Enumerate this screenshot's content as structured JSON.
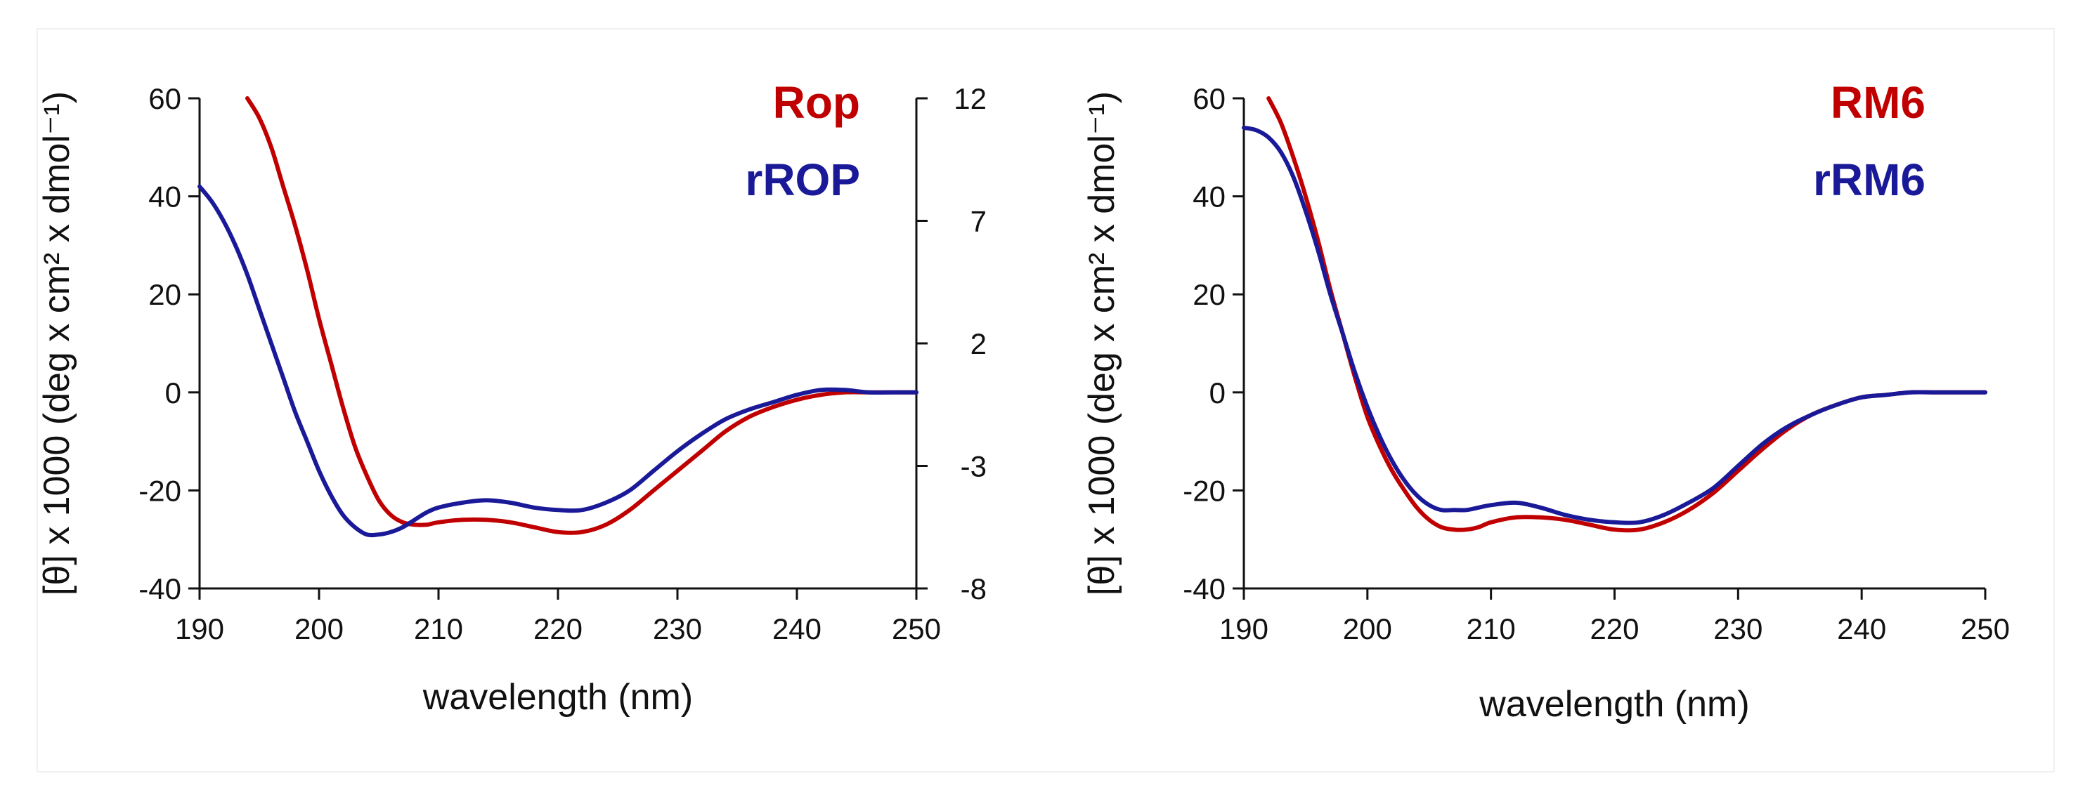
{
  "chart_data": [
    {
      "type": "line",
      "xlabel": "wavelength (nm)",
      "ylabel": "[θ] x 1000 (deg x cm² x dmol⁻¹)",
      "xlim": [
        190,
        250
      ],
      "ylim": [
        -40,
        60
      ],
      "x_ticks": [
        "190",
        "200",
        "210",
        "220",
        "230",
        "240",
        "250"
      ],
      "y_ticks": [
        "-40",
        "-20",
        "0",
        "20",
        "40",
        "60"
      ],
      "y2_ticks": [
        "-8",
        "-3",
        "2",
        "7",
        "12"
      ],
      "y2lim": [
        -8,
        12
      ],
      "grid": false,
      "legend_position": "top-right",
      "series": [
        {
          "name": "Rop",
          "color": "#c00000",
          "x": [
            194,
            195,
            196,
            197,
            198,
            199,
            200,
            201,
            202,
            203,
            204,
            205,
            206,
            207,
            208,
            209,
            210,
            212,
            214,
            216,
            218,
            220,
            222,
            224,
            226,
            228,
            230,
            232,
            234,
            236,
            238,
            240,
            242,
            244,
            246,
            248,
            250
          ],
          "y": [
            60,
            56,
            50,
            42,
            34,
            25,
            15,
            6,
            -3,
            -11,
            -17,
            -22,
            -25,
            -26.5,
            -27,
            -27,
            -26.5,
            -26,
            -26,
            -26.5,
            -27.5,
            -28.5,
            -28.5,
            -27,
            -24,
            -20,
            -16,
            -12,
            -8,
            -5,
            -3,
            -1.5,
            -0.5,
            0,
            0,
            0,
            0
          ]
        },
        {
          "name": "rROP",
          "color": "#1a1a99",
          "x": [
            190,
            191,
            192,
            193,
            194,
            195,
            196,
            197,
            198,
            199,
            200,
            201,
            202,
            203,
            204,
            205,
            206,
            207,
            208,
            209,
            210,
            212,
            214,
            216,
            218,
            220,
            222,
            224,
            226,
            228,
            230,
            232,
            234,
            236,
            238,
            240,
            242,
            244,
            246,
            248,
            250
          ],
          "y": [
            42,
            39,
            35,
            30,
            24,
            17,
            10,
            3,
            -4,
            -10,
            -16,
            -21,
            -25,
            -27.5,
            -29,
            -29,
            -28.5,
            -27.5,
            -26,
            -24.5,
            -23.5,
            -22.5,
            -22,
            -22.5,
            -23.5,
            -24,
            -24,
            -22.5,
            -20,
            -16,
            -12,
            -8.5,
            -5.5,
            -3.5,
            -2,
            -0.5,
            0.5,
            0.5,
            0,
            0,
            0
          ]
        }
      ]
    },
    {
      "type": "line",
      "xlabel": "wavelength (nm)",
      "ylabel": "[θ] x 1000 (deg x cm² x dmol⁻¹)",
      "xlim": [
        190,
        250
      ],
      "ylim": [
        -40,
        60
      ],
      "x_ticks": [
        "190",
        "200",
        "210",
        "220",
        "230",
        "240",
        "250"
      ],
      "y_ticks": [
        "-40",
        "-20",
        "0",
        "20",
        "40",
        "60"
      ],
      "grid": false,
      "legend_position": "top-right",
      "series": [
        {
          "name": "RM6",
          "color": "#c00000",
          "x": [
            192,
            193,
            194,
            195,
            196,
            197,
            198,
            199,
            200,
            201,
            202,
            203,
            204,
            205,
            206,
            207,
            208,
            209,
            210,
            212,
            214,
            216,
            218,
            220,
            222,
            224,
            226,
            228,
            230,
            232,
            234,
            236,
            238,
            240,
            242,
            244,
            246,
            248,
            250
          ],
          "y": [
            60,
            55,
            48,
            40,
            31,
            21,
            12,
            3,
            -5,
            -11,
            -16,
            -20,
            -23.5,
            -26,
            -27.5,
            -28,
            -28,
            -27.5,
            -26.5,
            -25.5,
            -25.5,
            -26,
            -27,
            -28,
            -28,
            -26.5,
            -24,
            -20.5,
            -16,
            -11.5,
            -7.5,
            -4.5,
            -2.5,
            -1,
            -0.5,
            0,
            0,
            0,
            0
          ]
        },
        {
          "name": "rRM6",
          "color": "#1a1a99",
          "x": [
            190,
            191,
            192,
            193,
            194,
            195,
            196,
            197,
            198,
            199,
            200,
            201,
            202,
            203,
            204,
            205,
            206,
            207,
            208,
            209,
            210,
            212,
            214,
            216,
            218,
            220,
            222,
            224,
            226,
            228,
            230,
            232,
            234,
            236,
            238,
            240,
            242,
            244,
            246,
            248,
            250
          ],
          "y": [
            54,
            53.5,
            52,
            49,
            44,
            37,
            29,
            20,
            12,
            4,
            -3,
            -9,
            -14,
            -18,
            -21,
            -23,
            -24,
            -24,
            -24,
            -23.5,
            -23,
            -22.5,
            -23.5,
            -25,
            -26,
            -26.5,
            -26.5,
            -25,
            -22.5,
            -19.5,
            -15,
            -10.5,
            -7,
            -4.5,
            -2.5,
            -1,
            -0.5,
            0,
            0,
            0,
            0
          ]
        }
      ]
    }
  ]
}
